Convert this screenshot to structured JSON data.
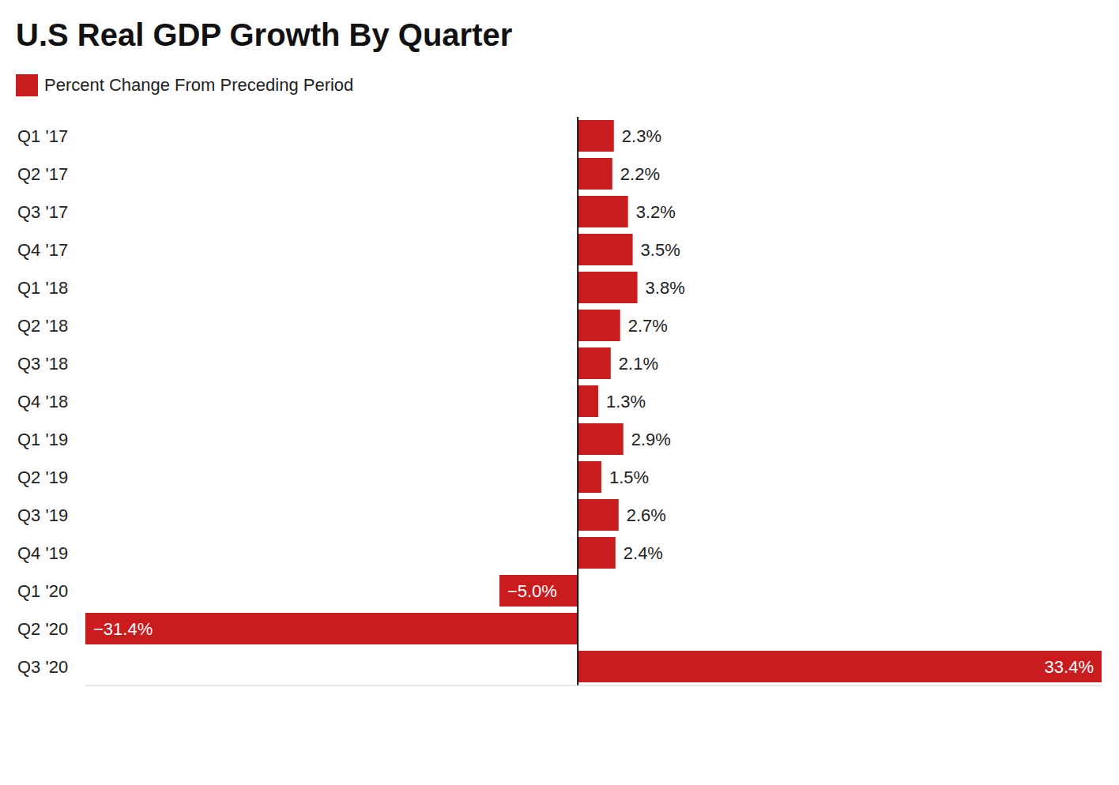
{
  "chart_data": {
    "type": "bar",
    "title": "U.S Real GDP Growth By Quarter",
    "orientation": "horizontal",
    "categories": [
      "Q1 '17",
      "Q2 '17",
      "Q3 '17",
      "Q4 '17",
      "Q1 '18",
      "Q2 '18",
      "Q3 '18",
      "Q4 '18",
      "Q1 '19",
      "Q2 '19",
      "Q3 '19",
      "Q4 '19",
      "Q1 '20",
      "Q2 '20",
      "Q3 '20"
    ],
    "series": [
      {
        "name": "Percent Change From Preceding Period",
        "color": "#c91c1f",
        "values": [
          2.3,
          2.2,
          3.2,
          3.5,
          3.8,
          2.7,
          2.1,
          1.3,
          2.9,
          1.5,
          2.6,
          2.4,
          -5.0,
          -31.4,
          33.4
        ],
        "value_labels": [
          "2.3%",
          "2.2%",
          "3.2%",
          "3.5%",
          "3.8%",
          "2.7%",
          "2.1%",
          "1.3%",
          "2.9%",
          "1.5%",
          "2.6%",
          "2.4%",
          "−5.0%",
          "−31.4%",
          "33.4%"
        ]
      }
    ],
    "xlim": [
      -31.4,
      33.4
    ],
    "xticks": [
      0
    ],
    "grid": false,
    "legend": "top-left",
    "data_labels": true,
    "tick_labels": "y"
  }
}
